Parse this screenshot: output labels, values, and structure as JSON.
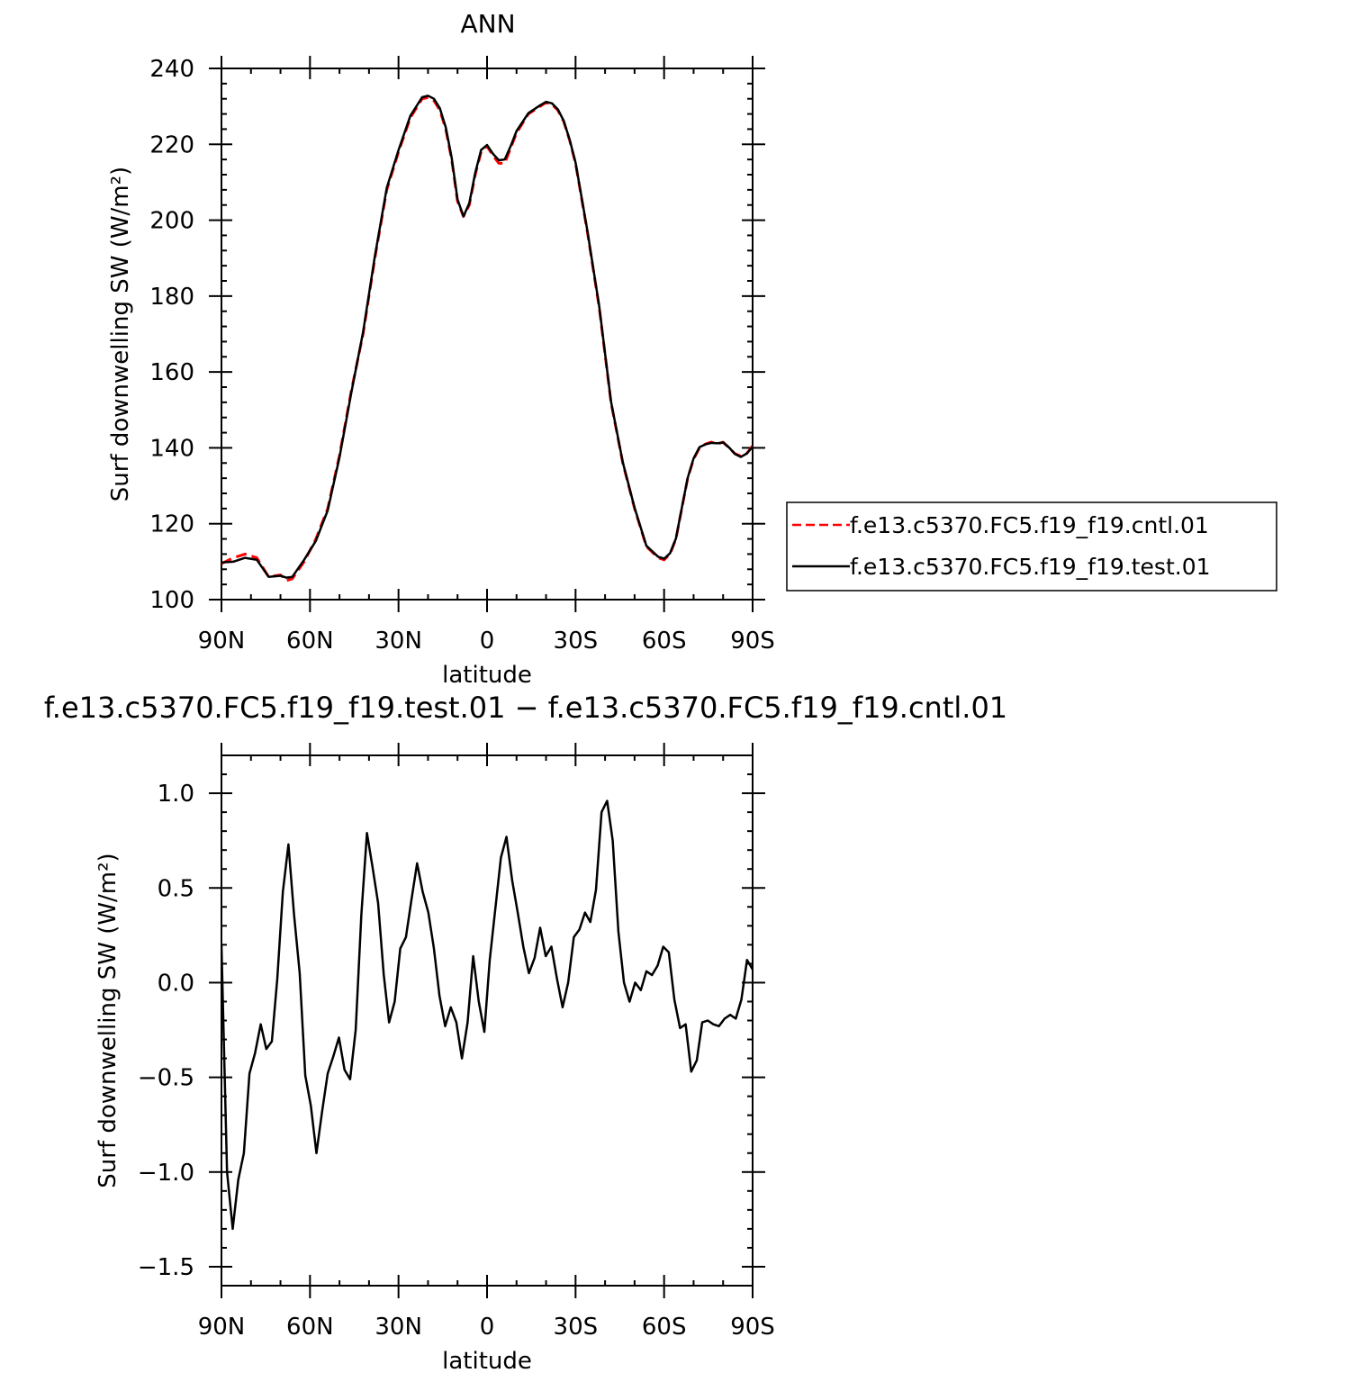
{
  "chart_data": [
    {
      "type": "line",
      "title": "ANN",
      "xlabel": "latitude",
      "ylabel": "Surf downwelling SW (W/m²)",
      "xlim": [
        90,
        -90
      ],
      "ylim": [
        100,
        240
      ],
      "xticks": [
        90,
        60,
        30,
        0,
        -30,
        -60,
        -90
      ],
      "xtick_labels": [
        "90N",
        "60N",
        "30N",
        "0",
        "30S",
        "60S",
        "90S"
      ],
      "yticks": [
        100,
        120,
        140,
        160,
        180,
        200,
        220,
        240
      ],
      "ytick_labels": [
        "100",
        "120",
        "140",
        "160",
        "180",
        "200",
        "220",
        "240"
      ],
      "grid": false,
      "legend_position": "right",
      "series": [
        {
          "name": "f.e13.c5370.FC5.f19_f19.cntl.01",
          "color": "#ff0000",
          "dash": "dashed",
          "x": [
            90,
            86,
            82,
            78,
            74,
            70,
            68,
            66,
            62,
            58,
            54,
            50,
            46,
            42,
            38,
            34,
            30,
            26,
            22,
            20,
            18,
            16,
            14,
            12,
            10,
            8,
            6,
            4,
            2,
            0,
            -2,
            -4,
            -6,
            -8,
            -10,
            -14,
            -18,
            -20,
            -22,
            -24,
            -26,
            -28,
            -30,
            -34,
            -38,
            -42,
            -46,
            -50,
            -54,
            -58,
            -60,
            -62,
            -64,
            -66,
            -68,
            -70,
            -72,
            -74,
            -76,
            -78,
            -80,
            -82,
            -84,
            -86,
            -88,
            -90
          ],
          "y": [
            109.5,
            111,
            112,
            111,
            106,
            106.5,
            105,
            105.5,
            110,
            116,
            124,
            138,
            155,
            170,
            190,
            208,
            218,
            227,
            232,
            232.3,
            231.5,
            229,
            224,
            216,
            205,
            201,
            204,
            212,
            218,
            219.5,
            217,
            215,
            215,
            219,
            223,
            228,
            230,
            231,
            230.5,
            229,
            226,
            221,
            215,
            197,
            177,
            152,
            136,
            124,
            114,
            111,
            110.5,
            112,
            116,
            124,
            132,
            137,
            140,
            141,
            141.5,
            141,
            141.5,
            140,
            138.5,
            137.8,
            138.5,
            140.5
          ]
        },
        {
          "name": "f.e13.c5370.FC5.f19_f19.test.01",
          "color": "#000000",
          "dash": "solid",
          "x": [
            90,
            86,
            82,
            78,
            74,
            70,
            68,
            66,
            62,
            58,
            54,
            50,
            46,
            42,
            38,
            34,
            30,
            26,
            22,
            20,
            18,
            16,
            14,
            12,
            10,
            8,
            6,
            4,
            2,
            0,
            -2,
            -4,
            -6,
            -8,
            -10,
            -14,
            -18,
            -20,
            -22,
            -24,
            -26,
            -28,
            -30,
            -34,
            -38,
            -42,
            -46,
            -50,
            -54,
            -58,
            -60,
            -62,
            -64,
            -66,
            -68,
            -70,
            -72,
            -74,
            -76,
            -78,
            -80,
            -82,
            -84,
            -86,
            -88,
            -90
          ],
          "y": [
            109.8,
            110,
            111,
            110.5,
            106,
            106.3,
            105.8,
            106,
            110.5,
            115.5,
            123.5,
            137.5,
            154.5,
            170.5,
            190.5,
            208.5,
            218.5,
            227.5,
            232.4,
            232.8,
            232,
            229.5,
            224.5,
            216.5,
            205.5,
            201,
            204.5,
            212.5,
            218.5,
            219.8,
            217.5,
            215.8,
            216,
            219.5,
            223.5,
            228.2,
            230.3,
            231.2,
            230.8,
            229.2,
            226.2,
            221.2,
            215.2,
            197.3,
            177.3,
            152.2,
            136.2,
            124.2,
            114.2,
            111.3,
            110.8,
            112.2,
            116.1,
            124.1,
            132.1,
            137.2,
            140.2,
            140.9,
            141.3,
            141.2,
            141.4,
            140.1,
            138.4,
            137.6,
            138.5,
            140.3
          ]
        }
      ]
    },
    {
      "type": "line",
      "title": "f.e13.c5370.FC5.f19_f19.test.01 − f.e13.c5370.FC5.f19_f19.cntl.01",
      "xlabel": "latitude",
      "ylabel": "Surf downwelling SW (W/m²)",
      "xlim": [
        90,
        -90
      ],
      "ylim": [
        -1.6,
        1.2
      ],
      "xticks": [
        90,
        60,
        30,
        0,
        -30,
        -60,
        -90
      ],
      "xtick_labels": [
        "90N",
        "60N",
        "30N",
        "0",
        "30S",
        "60S",
        "90S"
      ],
      "yticks": [
        -1.5,
        -1.0,
        -0.5,
        0.0,
        0.5,
        1.0
      ],
      "ytick_labels": [
        "−1.5",
        "−1.0",
        "−0.5",
        "0.0",
        "0.5",
        "1.0"
      ],
      "grid": false,
      "series": [
        {
          "color": "#000000",
          "dash": "solid",
          "x": [
            90,
            88.1,
            86.2,
            84.3,
            82.4,
            80.5,
            78.6,
            76.7,
            74.8,
            72.9,
            71.1,
            69.2,
            67.3,
            65.4,
            63.5,
            61.6,
            59.7,
            57.8,
            55.9,
            54.0,
            52.1,
            50.2,
            48.3,
            46.4,
            44.5,
            42.6,
            40.7,
            38.8,
            36.9,
            35.0,
            33.2,
            31.3,
            29.4,
            27.5,
            25.6,
            23.7,
            21.8,
            19.9,
            18.0,
            16.1,
            14.2,
            12.3,
            10.4,
            8.5,
            6.6,
            4.7,
            2.8,
            0.9,
            -0.9,
            -2.8,
            -4.7,
            -6.6,
            -8.5,
            -10.4,
            -12.3,
            -14.2,
            -16.1,
            -18.0,
            -19.9,
            -21.8,
            -23.7,
            -25.6,
            -27.5,
            -29.4,
            -31.3,
            -33.2,
            -35.0,
            -36.9,
            -38.8,
            -40.7,
            -42.6,
            -44.5,
            -46.4,
            -48.3,
            -50.2,
            -52.1,
            -54.0,
            -55.9,
            -57.8,
            -59.7,
            -61.6,
            -63.5,
            -65.4,
            -67.3,
            -69.2,
            -71.1,
            -72.9,
            -74.8,
            -76.7,
            -78.6,
            -80.5,
            -82.4,
            -84.3,
            -86.2,
            -88.1,
            -90
          ],
          "y": [
            0.2,
            -1.0,
            -1.3,
            -1.04,
            -0.9,
            -0.48,
            -0.37,
            -0.22,
            -0.35,
            -0.31,
            0.02,
            0.48,
            0.73,
            0.36,
            0.05,
            -0.49,
            -0.65,
            -0.9,
            -0.68,
            -0.48,
            -0.39,
            -0.29,
            -0.46,
            -0.51,
            -0.25,
            0.36,
            0.79,
            0.61,
            0.42,
            0.04,
            -0.21,
            -0.1,
            0.18,
            0.24,
            0.44,
            0.63,
            0.48,
            0.37,
            0.18,
            -0.07,
            -0.23,
            -0.13,
            -0.21,
            -0.4,
            -0.21,
            0.14,
            -0.1,
            -0.26,
            0.12,
            0.39,
            0.66,
            0.77,
            0.54,
            0.37,
            0.19,
            0.05,
            0.13,
            0.29,
            0.14,
            0.19,
            0.02,
            -0.13,
            0.0,
            0.24,
            0.28,
            0.37,
            0.32,
            0.49,
            0.9,
            0.96,
            0.75,
            0.27,
            0.0,
            -0.1,
            0.0,
            -0.04,
            0.06,
            0.04,
            0.09,
            0.19,
            0.16,
            -0.09,
            -0.24,
            -0.22,
            -0.47,
            -0.41,
            -0.21,
            -0.2,
            -0.22,
            -0.23,
            -0.19,
            -0.17,
            -0.19,
            -0.09,
            0.12,
            0.07
          ]
        }
      ]
    }
  ]
}
